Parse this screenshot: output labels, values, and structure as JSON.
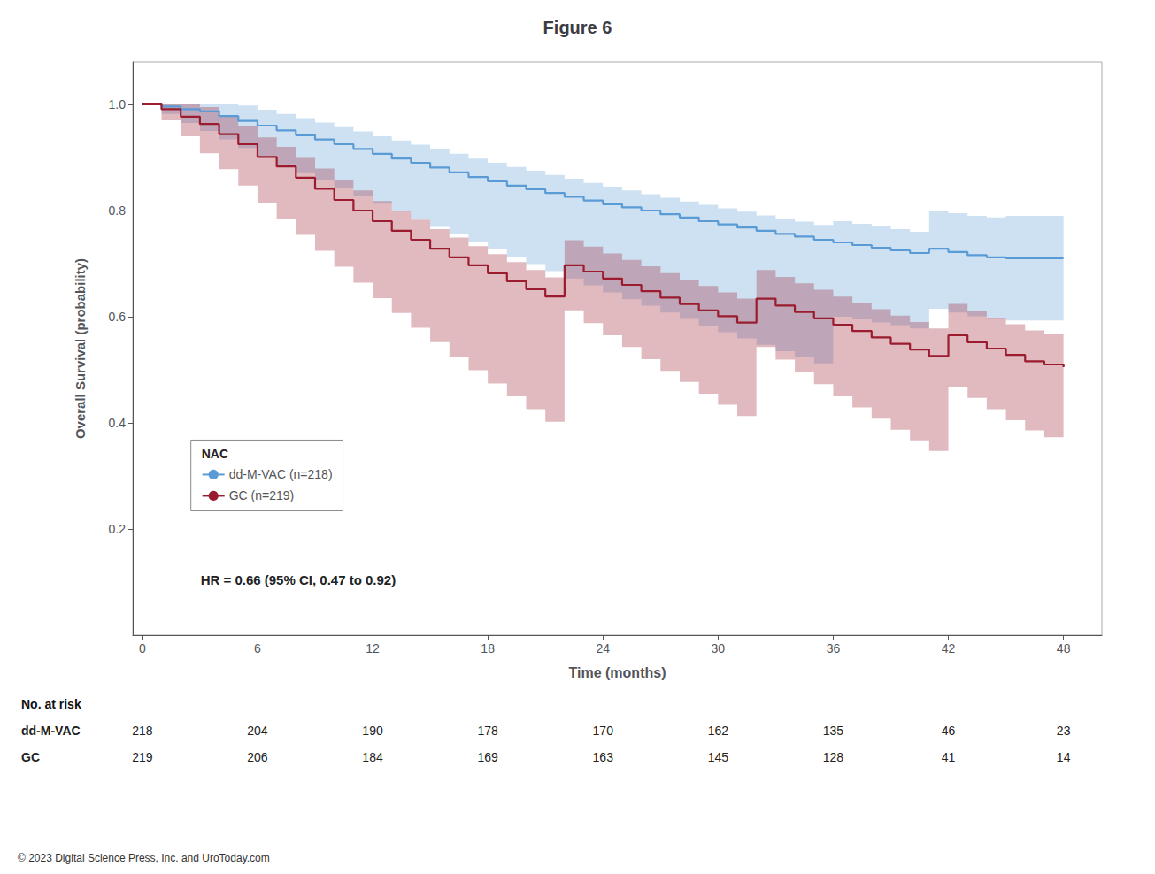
{
  "chart_data": {
    "type": "step",
    "title": "Figure 6",
    "xlabel": "Time (months)",
    "ylabel": "Overall Survival (probability)",
    "xlim": [
      -0.5,
      50
    ],
    "ylim": [
      0.0,
      1.08
    ],
    "xticks": [
      0,
      6,
      12,
      18,
      24,
      30,
      36,
      42,
      48
    ],
    "yticks": [
      0.2,
      0.4,
      0.6,
      0.8,
      {
        "value": 1.0,
        "label": "1.0"
      }
    ],
    "grid": false,
    "legend": "lower left",
    "legend_title": "NAC",
    "annotation": "HR = 0.66 (95% CI, 0.47 to 0.92)",
    "footnote": "© 2023 Digital Science Press, Inc. and UroToday.com",
    "series": [
      {
        "name": "dd-M-VAC (n=218)",
        "color": "#5b9bd5",
        "x": [
          0,
          1,
          2,
          3,
          4,
          5,
          6,
          7,
          8,
          9,
          10,
          11,
          12,
          13,
          14,
          15,
          16,
          17,
          18,
          19,
          20,
          21,
          22,
          23,
          24,
          25,
          26,
          27,
          28,
          29,
          30,
          31,
          32,
          33,
          34,
          35,
          36,
          37,
          38,
          39,
          40,
          41,
          42,
          43,
          44,
          45,
          46,
          47,
          48
        ],
        "values": [
          1.0,
          0.996,
          0.991,
          0.987,
          0.978,
          0.969,
          0.96,
          0.951,
          0.942,
          0.934,
          0.925,
          0.916,
          0.907,
          0.898,
          0.89,
          0.881,
          0.872,
          0.863,
          0.855,
          0.847,
          0.84,
          0.833,
          0.826,
          0.819,
          0.812,
          0.806,
          0.8,
          0.793,
          0.787,
          0.78,
          0.774,
          0.768,
          0.762,
          0.756,
          0.751,
          0.745,
          0.74,
          0.735,
          0.73,
          0.725,
          0.72,
          0.728,
          0.722,
          0.716,
          0.712,
          0.71,
          0.71,
          0.71,
          0.71
        ],
        "ci_upper": [
          1.0,
          1.0,
          1.0,
          1.0,
          1.0,
          0.998,
          0.99,
          0.982,
          0.974,
          0.966,
          0.957,
          0.949,
          0.94,
          0.932,
          0.924,
          0.915,
          0.907,
          0.898,
          0.89,
          0.882,
          0.875,
          0.867,
          0.86,
          0.852,
          0.845,
          0.838,
          0.831,
          0.824,
          0.817,
          0.811,
          0.804,
          0.798,
          0.791,
          0.785,
          0.779,
          0.773,
          0.78,
          0.775,
          0.77,
          0.765,
          0.76,
          0.8,
          0.795,
          0.79,
          0.787,
          0.79,
          0.79,
          0.79,
          0.79
        ],
        "ci_lower": [
          1.0,
          0.982,
          0.965,
          0.95,
          0.934,
          0.918,
          0.902,
          0.887,
          0.872,
          0.857,
          0.842,
          0.827,
          0.813,
          0.798,
          0.784,
          0.769,
          0.755,
          0.741,
          0.727,
          0.713,
          0.699,
          0.686,
          0.672,
          0.659,
          0.646,
          0.633,
          0.621,
          0.608,
          0.596,
          0.583,
          0.571,
          0.559,
          0.547,
          0.535,
          0.524,
          0.512,
          0.6,
          0.595,
          0.589,
          0.584,
          0.578,
          0.615,
          0.608,
          0.601,
          0.596,
          0.593,
          0.593,
          0.593,
          0.593
        ]
      },
      {
        "name": "GC (n=219)",
        "color": "#9b1c2e",
        "x": [
          0,
          1,
          2,
          3,
          4,
          5,
          6,
          7,
          8,
          9,
          10,
          11,
          12,
          13,
          14,
          15,
          16,
          17,
          18,
          19,
          20,
          21,
          22,
          23,
          24,
          25,
          26,
          27,
          28,
          29,
          30,
          31,
          32,
          33,
          34,
          35,
          36,
          37,
          38,
          39,
          40,
          41,
          42,
          43,
          44,
          45,
          46,
          47,
          48
        ],
        "values": [
          1.0,
          0.991,
          0.977,
          0.963,
          0.944,
          0.925,
          0.901,
          0.883,
          0.862,
          0.841,
          0.82,
          0.8,
          0.78,
          0.762,
          0.745,
          0.728,
          0.712,
          0.697,
          0.682,
          0.667,
          0.652,
          0.638,
          0.697,
          0.685,
          0.672,
          0.66,
          0.648,
          0.636,
          0.624,
          0.612,
          0.601,
          0.589,
          0.634,
          0.621,
          0.609,
          0.597,
          0.585,
          0.573,
          0.561,
          0.549,
          0.538,
          0.526,
          0.565,
          0.552,
          0.54,
          0.528,
          0.516,
          0.51,
          0.505
        ],
        "ci_upper": [
          1.0,
          1.0,
          1.0,
          0.995,
          0.978,
          0.96,
          0.938,
          0.92,
          0.899,
          0.879,
          0.858,
          0.838,
          0.818,
          0.8,
          0.783,
          0.765,
          0.749,
          0.733,
          0.718,
          0.703,
          0.688,
          0.674,
          0.744,
          0.732,
          0.719,
          0.707,
          0.695,
          0.682,
          0.67,
          0.658,
          0.646,
          0.634,
          0.688,
          0.675,
          0.663,
          0.651,
          0.638,
          0.626,
          0.614,
          0.602,
          0.59,
          0.578,
          0.624,
          0.611,
          0.598,
          0.586,
          0.574,
          0.568,
          0.563
        ],
        "ci_lower": [
          1.0,
          0.97,
          0.94,
          0.908,
          0.878,
          0.847,
          0.814,
          0.785,
          0.754,
          0.724,
          0.694,
          0.664,
          0.635,
          0.607,
          0.579,
          0.552,
          0.525,
          0.499,
          0.474,
          0.45,
          0.426,
          0.402,
          0.612,
          0.588,
          0.565,
          0.543,
          0.52,
          0.498,
          0.477,
          0.455,
          0.434,
          0.413,
          0.543,
          0.519,
          0.496,
          0.473,
          0.45,
          0.429,
          0.408,
          0.387,
          0.367,
          0.347,
          0.468,
          0.447,
          0.426,
          0.405,
          0.386,
          0.373,
          0.41
        ]
      }
    ],
    "at_risk": {
      "label": "No. at risk",
      "rows": [
        {
          "name": "dd-M-VAC",
          "values": [
            218,
            204,
            190,
            178,
            170,
            162,
            135,
            46,
            23
          ]
        },
        {
          "name": "GC",
          "values": [
            219,
            206,
            184,
            169,
            163,
            145,
            128,
            41,
            14
          ]
        }
      ]
    }
  }
}
